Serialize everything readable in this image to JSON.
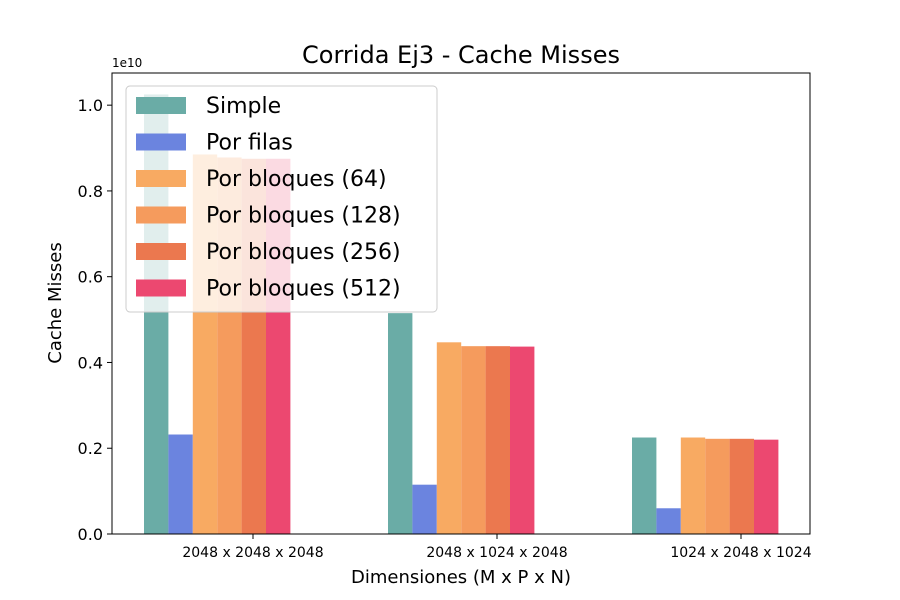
{
  "chart_data": {
    "type": "bar",
    "title": "Corrida Ej3 - Cache Misses",
    "xlabel": "Dimensiones (M x P x N)",
    "ylabel": "Cache Misses",
    "scale_label": "1e10",
    "scale_factor": 10000000000,
    "ylim": [
      0,
      1.075
    ],
    "yticks": [
      0.0,
      0.2,
      0.4,
      0.6,
      0.8,
      1.0
    ],
    "ytick_labels": [
      "0.0",
      "0.2",
      "0.4",
      "0.6",
      "0.8",
      "1.0"
    ],
    "grid": false,
    "legend_position": "top-left",
    "categories": [
      "2048 x 2048 x 2048",
      "2048 x 1024 x 2048",
      "1024 x 2048 x 1024"
    ],
    "series": [
      {
        "name": "Simple",
        "color": "#6aaca6",
        "values": [
          1.025,
          0.515,
          0.225
        ]
      },
      {
        "name": "Por filas",
        "color": "#6b84df",
        "values": [
          0.232,
          0.115,
          0.06
        ]
      },
      {
        "name": "Por bloques (64)",
        "color": "#f8aa62",
        "values": [
          0.885,
          0.447,
          0.225
        ]
      },
      {
        "name": "Por bloques (128)",
        "color": "#f59b5d",
        "values": [
          0.878,
          0.438,
          0.222
        ]
      },
      {
        "name": "Por bloques (256)",
        "color": "#eb784f",
        "values": [
          0.875,
          0.438,
          0.222
        ]
      },
      {
        "name": "Por bloques (512)",
        "color": "#ec4870",
        "values": [
          0.875,
          0.437,
          0.22
        ]
      }
    ]
  }
}
